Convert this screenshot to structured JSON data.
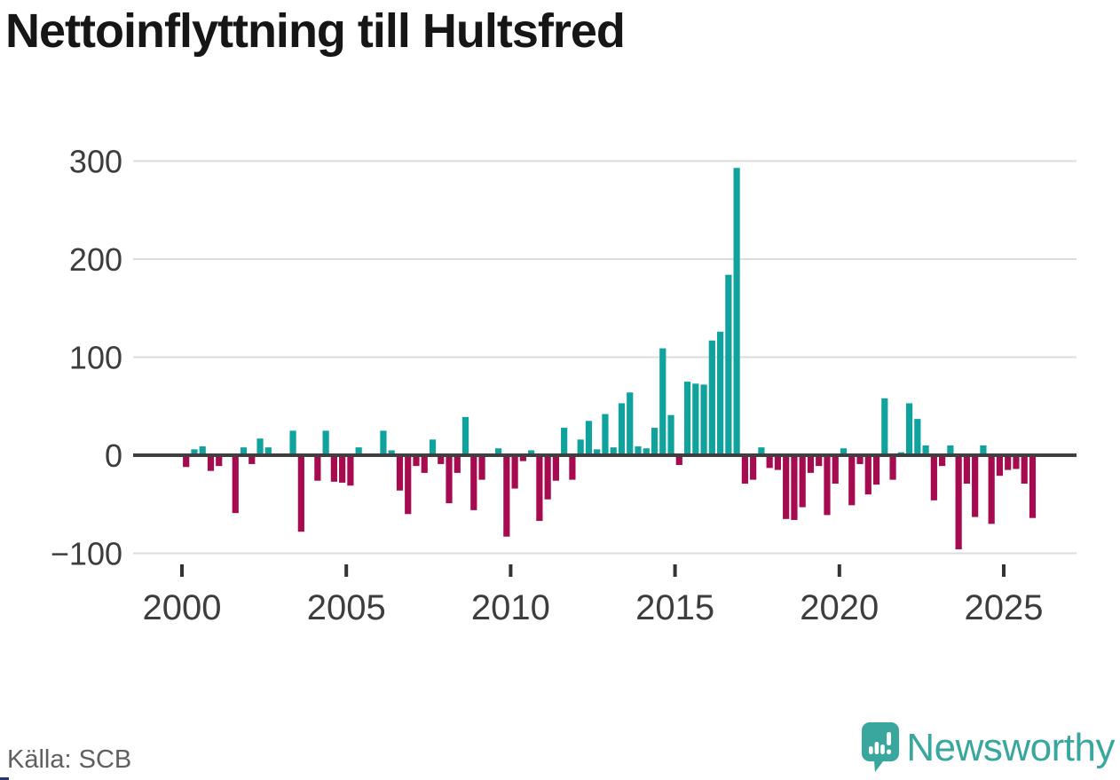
{
  "title": "Nettoinflyttning till Hultsfred",
  "source": "Källa: SCB",
  "branding": {
    "name": "Newsworthy",
    "icon": "newsworthy-pin-chart-icon",
    "color": "#3aa79f"
  },
  "chart_data": {
    "type": "bar",
    "title": "Nettoinflyttning till Hultsfred",
    "x_unit": "quarter",
    "grid": "horizontal",
    "legend": "none",
    "ylim": [
      -100,
      300
    ],
    "yticks": [
      300,
      200,
      100,
      0,
      -100
    ],
    "ytick_labels": [
      "300",
      "200",
      "100",
      "0",
      "−100"
    ],
    "xtick_years": [
      2000,
      2005,
      2010,
      2015,
      2020,
      2025
    ],
    "colors": {
      "positive": "#10a29d",
      "negative": "#a60b50",
      "axis": "#3f3f3f",
      "gridline": "#dcdcdc",
      "tick_label": "#3d3d3d"
    },
    "categories": [
      "2000Q1",
      "2000Q2",
      "2000Q3",
      "2000Q4",
      "2001Q1",
      "2001Q2",
      "2001Q3",
      "2001Q4",
      "2002Q1",
      "2002Q2",
      "2002Q3",
      "2002Q4",
      "2003Q1",
      "2003Q2",
      "2003Q3",
      "2003Q4",
      "2004Q1",
      "2004Q2",
      "2004Q3",
      "2004Q4",
      "2005Q1",
      "2005Q2",
      "2005Q3",
      "2005Q4",
      "2006Q1",
      "2006Q2",
      "2006Q3",
      "2006Q4",
      "2007Q1",
      "2007Q2",
      "2007Q3",
      "2007Q4",
      "2008Q1",
      "2008Q2",
      "2008Q3",
      "2008Q4",
      "2009Q1",
      "2009Q2",
      "2009Q3",
      "2009Q4",
      "2010Q1",
      "2010Q2",
      "2010Q3",
      "2010Q4",
      "2011Q1",
      "2011Q2",
      "2011Q3",
      "2011Q4",
      "2012Q1",
      "2012Q2",
      "2012Q3",
      "2012Q4",
      "2013Q1",
      "2013Q2",
      "2013Q3",
      "2013Q4",
      "2014Q1",
      "2014Q2",
      "2014Q3",
      "2014Q4",
      "2015Q1",
      "2015Q2",
      "2015Q3",
      "2015Q4",
      "2016Q1",
      "2016Q2",
      "2016Q3",
      "2016Q4",
      "2017Q1",
      "2017Q2",
      "2017Q3",
      "2017Q4",
      "2018Q1",
      "2018Q2",
      "2018Q3",
      "2018Q4",
      "2019Q1",
      "2019Q2",
      "2019Q3",
      "2019Q4",
      "2020Q1",
      "2020Q2",
      "2020Q3",
      "2020Q4",
      "2021Q1",
      "2021Q2",
      "2021Q3",
      "2021Q4",
      "2022Q1",
      "2022Q2",
      "2022Q3",
      "2022Q4",
      "2023Q1",
      "2023Q2",
      "2023Q3",
      "2023Q4",
      "2024Q1",
      "2024Q2",
      "2024Q3",
      "2024Q4",
      "2025Q1",
      "2025Q2",
      "2025Q3",
      "2025Q4"
    ],
    "values": [
      -12,
      6,
      9,
      -16,
      -11,
      0,
      -59,
      8,
      -9,
      17,
      8,
      0,
      0,
      25,
      -78,
      0,
      -26,
      25,
      -27,
      -28,
      -31,
      8,
      0,
      0,
      25,
      5,
      -36,
      -60,
      -11,
      -18,
      16,
      -9,
      -49,
      -18,
      39,
      -56,
      -25,
      0,
      7,
      -83,
      -34,
      -6,
      5,
      -67,
      -45,
      -26,
      28,
      -25,
      16,
      35,
      6,
      42,
      8,
      53,
      64,
      9,
      7,
      28,
      109,
      41,
      -10,
      75,
      73,
      72,
      117,
      126,
      184,
      293,
      -29,
      -25,
      8,
      -13,
      -15,
      -65,
      -66,
      -53,
      -18,
      -11,
      -61,
      -29,
      7,
      -51,
      -9,
      -40,
      -30,
      58,
      -25,
      3,
      53,
      37,
      10,
      -46,
      -11,
      10,
      -96,
      -29,
      -63,
      10,
      -70,
      -21,
      -15,
      -14,
      -29,
      -64
    ]
  }
}
